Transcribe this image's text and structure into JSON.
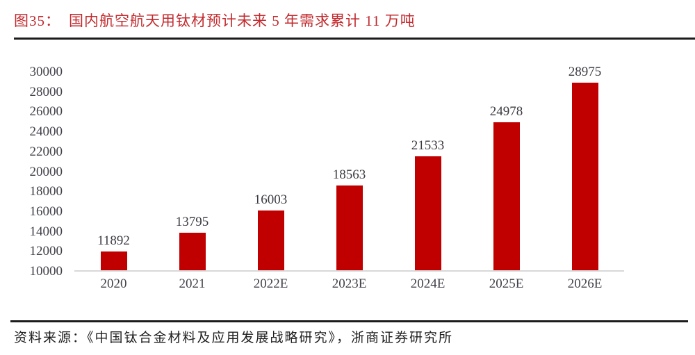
{
  "header": {
    "figure_label": "图35：",
    "title": "国内航空航天用钛材预计未来 5 年需求累计 11 万吨"
  },
  "chart_data": {
    "type": "bar",
    "categories": [
      "2020",
      "2021",
      "2022E",
      "2023E",
      "2024E",
      "2025E",
      "2026E"
    ],
    "values": [
      11892,
      13795,
      16003,
      18563,
      21533,
      24978,
      28975
    ],
    "title": "国内航空航天用钛材预计未来 5 年需求累计 11 万吨",
    "xlabel": "",
    "ylabel": "",
    "ylim": [
      10000,
      30000
    ],
    "ytick_step": 2000,
    "grid": false,
    "data_labels": true,
    "legend": "none",
    "bar_color": "#C00000"
  },
  "colors": {
    "title_red": "#C22A2E",
    "bar_red": "#C00000",
    "axis_text": "#41414A",
    "rule_black": "#1C1C1C",
    "baseline_gray": "#D8D8D8"
  },
  "footer": {
    "source": "资料来源：《中国钛合金材料及应用发展战略研究》，浙商证券研究所"
  }
}
